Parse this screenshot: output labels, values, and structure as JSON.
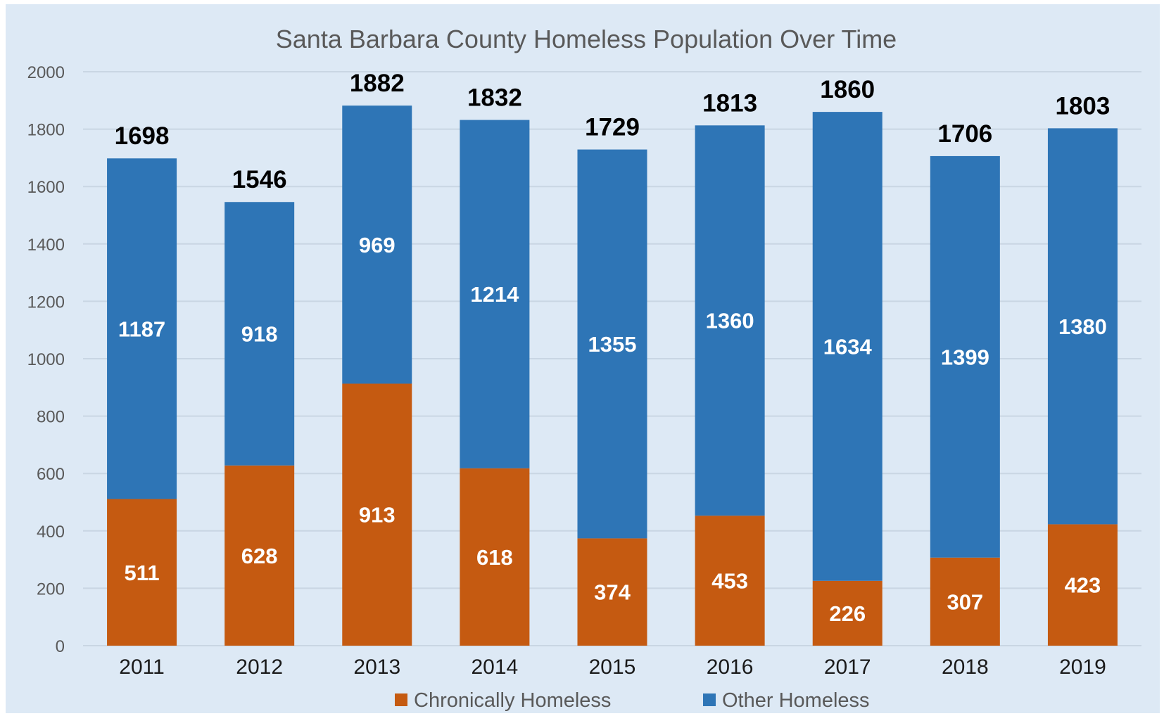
{
  "chart_data": {
    "type": "bar",
    "stacked": true,
    "title": "Santa Barbara County Homeless Population Over Time",
    "categories": [
      "2011",
      "2012",
      "2013",
      "2014",
      "2015",
      "2016",
      "2017",
      "2018",
      "2019"
    ],
    "series": [
      {
        "name": "Chronically Homeless",
        "color": "#c55a11",
        "values": [
          511,
          628,
          913,
          618,
          374,
          453,
          226,
          307,
          423
        ]
      },
      {
        "name": "Other Homeless",
        "color": "#2e75b6",
        "values": [
          1187,
          918,
          969,
          1214,
          1355,
          1360,
          1634,
          1399,
          1380
        ]
      }
    ],
    "totals": [
      1698,
      1546,
      1882,
      1832,
      1729,
      1813,
      1860,
      1706,
      1803
    ],
    "ylim": [
      0,
      2000
    ],
    "yticks": [
      0,
      200,
      400,
      600,
      800,
      1000,
      1200,
      1400,
      1600,
      1800,
      2000
    ],
    "grid": true,
    "legend_position": "bottom",
    "background_color": "#dde9f5",
    "grid_color": "#c9d6e3"
  }
}
